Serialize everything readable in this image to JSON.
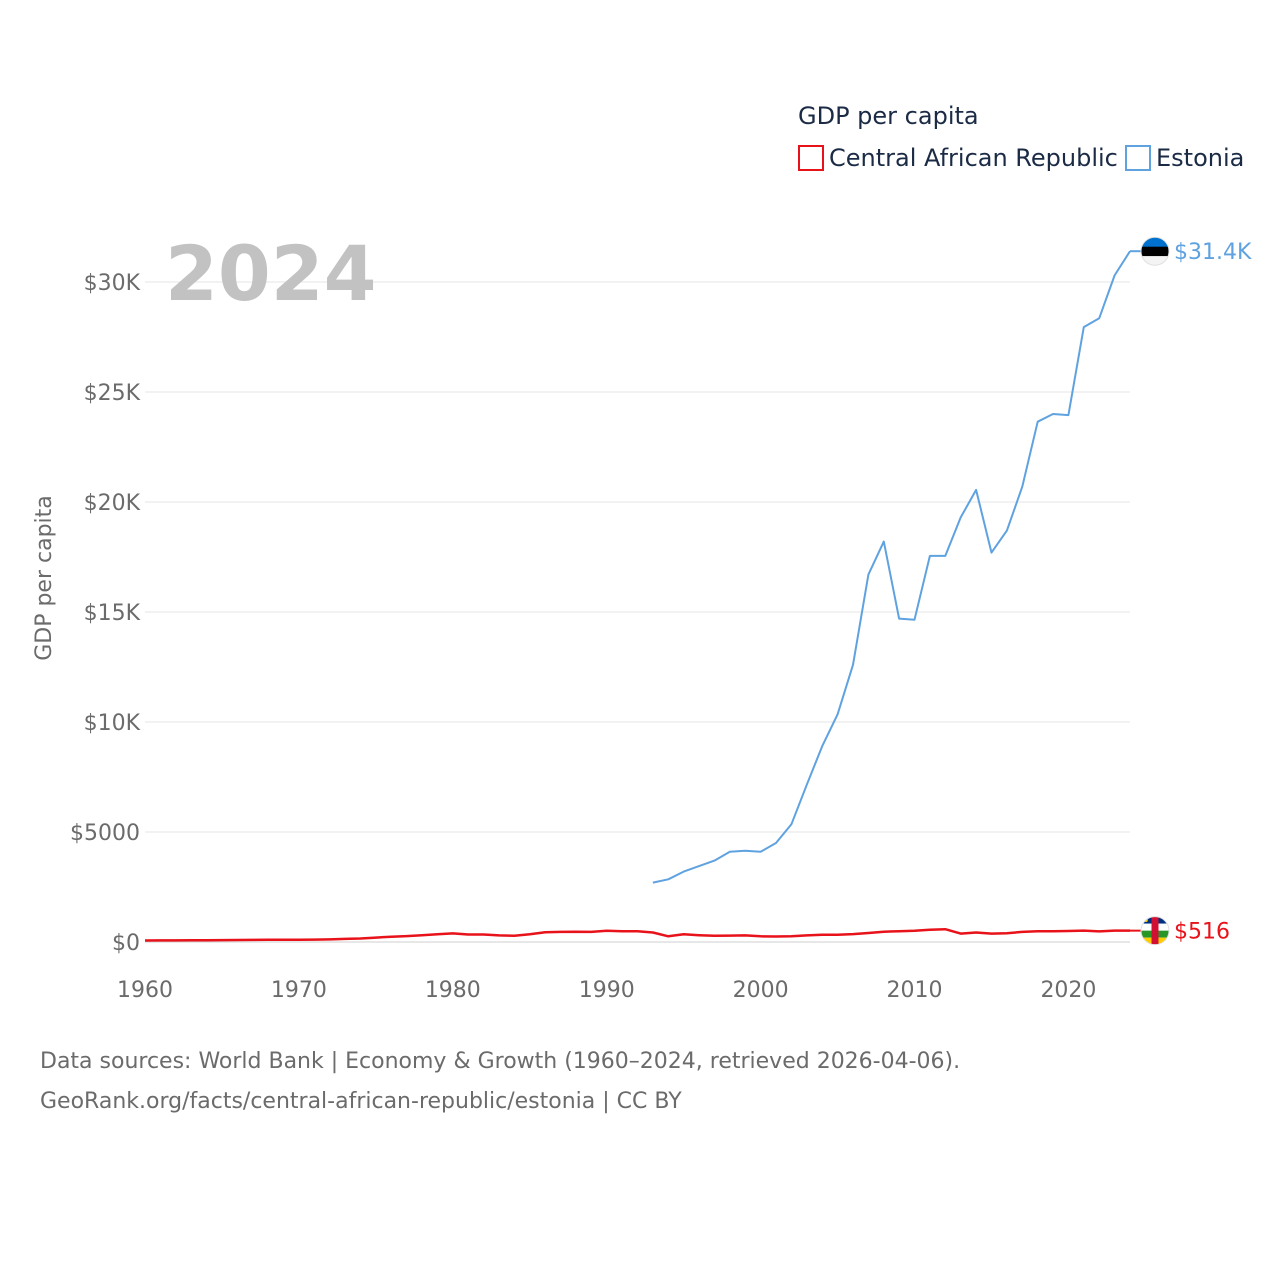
{
  "chart_data": {
    "type": "line",
    "legend": {
      "title": "GDP per capita"
    },
    "current_year": "2024",
    "ylabel": "GDP per capita",
    "xlim": [
      1960,
      2024
    ],
    "ylim": [
      0,
      32500
    ],
    "x_ticks": [
      {
        "value": 1960,
        "label": "1960"
      },
      {
        "value": 1970,
        "label": "1970"
      },
      {
        "value": 1980,
        "label": "1980"
      },
      {
        "value": 1990,
        "label": "1990"
      },
      {
        "value": 2000,
        "label": "2000"
      },
      {
        "value": 2010,
        "label": "2010"
      },
      {
        "value": 2020,
        "label": "2020"
      }
    ],
    "y_ticks": [
      {
        "value": 0,
        "label": "$0"
      },
      {
        "value": 5000,
        "label": "$5000"
      },
      {
        "value": 10000,
        "label": "$10K"
      },
      {
        "value": 15000,
        "label": "$15K"
      },
      {
        "value": 20000,
        "label": "$20K"
      },
      {
        "value": 25000,
        "label": "$25K"
      },
      {
        "value": 30000,
        "label": "$30K"
      }
    ],
    "series": [
      {
        "name": "Central African Republic",
        "color": "#e8121a",
        "end_label": "$516",
        "flag": "central-african-republic-flag",
        "points": [
          [
            1960,
            70
          ],
          [
            1961,
            72
          ],
          [
            1962,
            75
          ],
          [
            1963,
            78
          ],
          [
            1964,
            82
          ],
          [
            1965,
            85
          ],
          [
            1966,
            90
          ],
          [
            1967,
            95
          ],
          [
            1968,
            98
          ],
          [
            1969,
            100
          ],
          [
            1970,
            105
          ],
          [
            1971,
            110
          ],
          [
            1972,
            120
          ],
          [
            1973,
            140
          ],
          [
            1974,
            160
          ],
          [
            1975,
            200
          ],
          [
            1976,
            240
          ],
          [
            1977,
            270
          ],
          [
            1978,
            310
          ],
          [
            1979,
            350
          ],
          [
            1980,
            390
          ],
          [
            1981,
            340
          ],
          [
            1982,
            340
          ],
          [
            1983,
            300
          ],
          [
            1984,
            280
          ],
          [
            1985,
            350
          ],
          [
            1986,
            440
          ],
          [
            1987,
            460
          ],
          [
            1988,
            470
          ],
          [
            1989,
            460
          ],
          [
            1990,
            510
          ],
          [
            1991,
            490
          ],
          [
            1992,
            490
          ],
          [
            1993,
            430
          ],
          [
            1994,
            260
          ],
          [
            1995,
            350
          ],
          [
            1996,
            310
          ],
          [
            1997,
            280
          ],
          [
            1998,
            290
          ],
          [
            1999,
            300
          ],
          [
            2000,
            260
          ],
          [
            2001,
            250
          ],
          [
            2002,
            260
          ],
          [
            2003,
            300
          ],
          [
            2004,
            330
          ],
          [
            2005,
            330
          ],
          [
            2006,
            360
          ],
          [
            2007,
            410
          ],
          [
            2008,
            470
          ],
          [
            2009,
            490
          ],
          [
            2010,
            510
          ],
          [
            2011,
            560
          ],
          [
            2012,
            580
          ],
          [
            2013,
            380
          ],
          [
            2014,
            430
          ],
          [
            2015,
            380
          ],
          [
            2016,
            400
          ],
          [
            2017,
            460
          ],
          [
            2018,
            490
          ],
          [
            2019,
            490
          ],
          [
            2020,
            500
          ],
          [
            2021,
            520
          ],
          [
            2022,
            480
          ],
          [
            2023,
            520
          ],
          [
            2024,
            516
          ]
        ]
      },
      {
        "name": "Estonia",
        "color": "#5fa2e0",
        "end_label": "$31.4K",
        "flag": "estonia-flag",
        "points": [
          [
            1993,
            2700
          ],
          [
            1994,
            2850
          ],
          [
            1995,
            3200
          ],
          [
            1996,
            3450
          ],
          [
            1997,
            3700
          ],
          [
            1998,
            4100
          ],
          [
            1999,
            4150
          ],
          [
            2000,
            4100
          ],
          [
            2001,
            4500
          ],
          [
            2002,
            5350
          ],
          [
            2003,
            7150
          ],
          [
            2004,
            8900
          ],
          [
            2005,
            10350
          ],
          [
            2006,
            12600
          ],
          [
            2007,
            16700
          ],
          [
            2008,
            18200
          ],
          [
            2009,
            14700
          ],
          [
            2010,
            14650
          ],
          [
            2011,
            17550
          ],
          [
            2012,
            17550
          ],
          [
            2013,
            19300
          ],
          [
            2014,
            20550
          ],
          [
            2015,
            17700
          ],
          [
            2016,
            18700
          ],
          [
            2017,
            20700
          ],
          [
            2018,
            23650
          ],
          [
            2019,
            24000
          ],
          [
            2020,
            23950
          ],
          [
            2021,
            27950
          ],
          [
            2022,
            28350
          ],
          [
            2023,
            30300
          ],
          [
            2024,
            31400
          ]
        ]
      }
    ]
  },
  "source": {
    "line1": "Data sources: World Bank | Economy & Growth (1960–2024, retrieved 2026-04-06).",
    "line2": "GeoRank.org/facts/central-african-republic/estonia | CC BY"
  }
}
